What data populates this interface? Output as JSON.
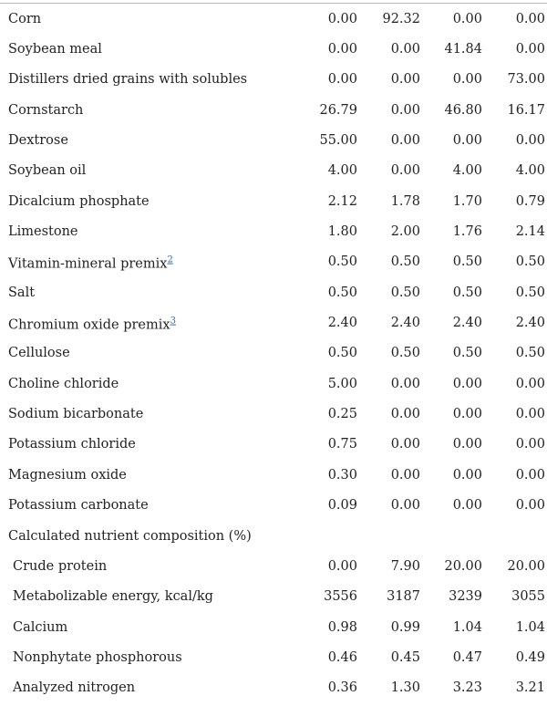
{
  "ingredients": [
    {
      "label": "Corn",
      "values": [
        "0.00",
        "92.32",
        "0.00",
        "0.00"
      ]
    },
    {
      "label": "Soybean meal",
      "values": [
        "0.00",
        "0.00",
        "41.84",
        "0.00"
      ]
    },
    {
      "label": "Distillers dried grains with solubles",
      "values": [
        "0.00",
        "0.00",
        "0.00",
        "73.00"
      ]
    },
    {
      "label": "Cornstarch",
      "values": [
        "26.79",
        "0.00",
        "46.80",
        "16.17"
      ]
    },
    {
      "label": "Dextrose",
      "values": [
        "55.00",
        "0.00",
        "0.00",
        "0.00"
      ]
    },
    {
      "label": "Soybean oil",
      "values": [
        "4.00",
        "0.00",
        "4.00",
        "4.00"
      ]
    },
    {
      "label": "Dicalcium phosphate",
      "values": [
        "2.12",
        "1.78",
        "1.70",
        "0.79"
      ]
    },
    {
      "label": "Limestone",
      "values": [
        "1.80",
        "2.00",
        "1.76",
        "2.14"
      ]
    },
    {
      "label": "Vitamin-mineral premix",
      "sup": "2",
      "values": [
        "0.50",
        "0.50",
        "0.50",
        "0.50"
      ]
    },
    {
      "label": "Salt",
      "values": [
        "0.50",
        "0.50",
        "0.50",
        "0.50"
      ]
    },
    {
      "label": "Chromium oxide premix",
      "sup": "3",
      "values": [
        "2.40",
        "2.40",
        "2.40",
        "2.40"
      ]
    },
    {
      "label": "Cellulose",
      "values": [
        "0.50",
        "0.50",
        "0.50",
        "0.50"
      ]
    },
    {
      "label": "Choline chloride",
      "values": [
        "5.00",
        "0.00",
        "0.00",
        "0.00"
      ]
    },
    {
      "label": "Sodium bicarbonate",
      "values": [
        "0.25",
        "0.00",
        "0.00",
        "0.00"
      ]
    },
    {
      "label": "Potassium chloride",
      "values": [
        "0.75",
        "0.00",
        "0.00",
        "0.00"
      ]
    },
    {
      "label": "Magnesium oxide",
      "values": [
        "0.30",
        "0.00",
        "0.00",
        "0.00"
      ]
    },
    {
      "label": "Potassium carbonate",
      "values": [
        "0.09",
        "0.00",
        "0.00",
        "0.00"
      ]
    }
  ],
  "nutrients": {
    "title": "Calculated nutrient composition (%)",
    "rows": [
      {
        "label": "Crude protein",
        "values": [
          "0.00",
          "7.90",
          "20.00",
          "20.00"
        ]
      },
      {
        "label": "Metabolizable energy, kcal/kg",
        "values": [
          "3556",
          "3187",
          "3239",
          "3055"
        ]
      },
      {
        "label": "Calcium",
        "values": [
          "0.98",
          "0.99",
          "1.04",
          "1.04"
        ]
      },
      {
        "label": "Nonphytate phosphorous",
        "values": [
          "0.46",
          "0.45",
          "0.47",
          "0.49"
        ]
      },
      {
        "label": "Analyzed nitrogen",
        "values": [
          "0.36",
          "1.30",
          "3.23",
          "3.21"
        ]
      }
    ]
  }
}
